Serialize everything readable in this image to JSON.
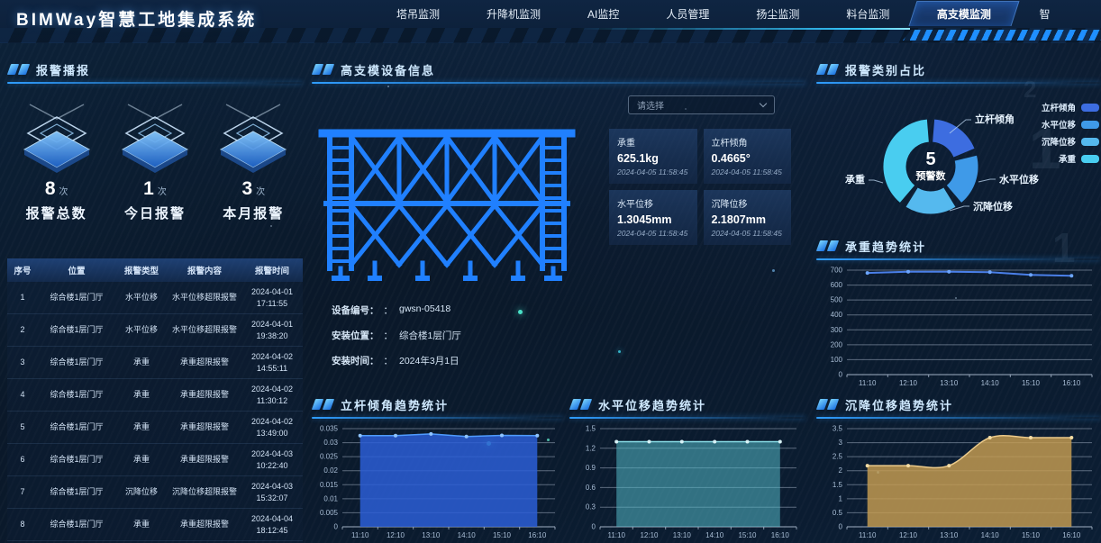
{
  "header": {
    "title": "BIMWay智慧工地集成系统",
    "tabs": [
      {
        "label": "塔吊监测",
        "active": false
      },
      {
        "label": "升降机监测",
        "active": false
      },
      {
        "label": "AI监控",
        "active": false
      },
      {
        "label": "人员管理",
        "active": false
      },
      {
        "label": "扬尘监测",
        "active": false
      },
      {
        "label": "料台监测",
        "active": false
      },
      {
        "label": "高支模监测",
        "active": true
      },
      {
        "label": "智",
        "active": false
      }
    ]
  },
  "alarm_panel": {
    "title": "报警播报",
    "stats": [
      {
        "value": "8",
        "unit": "次",
        "label": "报警总数"
      },
      {
        "value": "1",
        "unit": "次",
        "label": "今日报警"
      },
      {
        "value": "3",
        "unit": "次",
        "label": "本月报警"
      }
    ],
    "table": {
      "columns": [
        "序号",
        "位置",
        "报警类型",
        "报警内容",
        "报警时间"
      ],
      "rows": [
        [
          "1",
          "综合楼1层门厅",
          "水平位移",
          "水平位移超限报警",
          "2024-04-01 17:11:55"
        ],
        [
          "2",
          "综合楼1层门厅",
          "水平位移",
          "水平位移超限报警",
          "2024-04-01 19:38:20"
        ],
        [
          "3",
          "综合楼1层门厅",
          "承重",
          "承重超限报警",
          "2024-04-02 14:55:11"
        ],
        [
          "4",
          "综合楼1层门厅",
          "承重",
          "承重超限报警",
          "2024-04-02 11:30:12"
        ],
        [
          "5",
          "综合楼1层门厅",
          "承重",
          "承重超限报警",
          "2024-04-02 13:49:00"
        ],
        [
          "6",
          "综合楼1层门厅",
          "承重",
          "承重超限报警",
          "2024-04-03 10:22:40"
        ],
        [
          "7",
          "综合楼1层门厅",
          "沉降位移",
          "沉降位移超限报警",
          "2024-04-03 15:32:07"
        ],
        [
          "8",
          "综合楼1层门厅",
          "承重",
          "承重超限报警",
          "2024-04-04 18:12:45"
        ]
      ]
    }
  },
  "device_panel": {
    "title": "高支模设备信息",
    "select_placeholder": "请选择",
    "metric_cards": [
      {
        "label": "承重",
        "value": "625.1kg",
        "time": "2024-04-05 11:58:45"
      },
      {
        "label": "立杆倾角",
        "value": "0.4665°",
        "time": "2024-04-05 11:58:45"
      },
      {
        "label": "水平位移",
        "value": "1.3045mm",
        "time": "2024-04-05 11:58:45"
      },
      {
        "label": "沉降位移",
        "value": "2.1807mm",
        "time": "2024-04-05 11:58:45"
      }
    ],
    "info": [
      {
        "label": "设备编号：",
        "colon": "：",
        "value": "gwsn-05418"
      },
      {
        "label": "安装位置：",
        "colon": "：",
        "value": "综合楼1层门厅"
      },
      {
        "label": "安装时间：",
        "colon": "：",
        "value": "2024年3月1日"
      }
    ]
  },
  "chart_data": [
    {
      "id": "alarm-category-donut",
      "type": "pie",
      "title": "报警类别占比",
      "center": {
        "value": "5",
        "label": "预警数"
      },
      "segments": [
        {
          "name": "立杆倾角",
          "value": 1,
          "color": "#3d6de0"
        },
        {
          "name": "水平位移",
          "value": 1,
          "color": "#3f9ae8"
        },
        {
          "name": "沉降位移",
          "value": 1,
          "color": "#55b9ee"
        },
        {
          "name": "承重",
          "value": 2,
          "color": "#49cdf0"
        }
      ],
      "legend_position": "right"
    },
    {
      "id": "load-trend",
      "type": "line",
      "title": "承重趋势统计",
      "x": [
        "11:10",
        "12:10",
        "13:10",
        "14:10",
        "15:10",
        "16:10"
      ],
      "values": [
        681,
        689,
        689,
        687,
        668,
        662
      ],
      "ylim": [
        0,
        700
      ],
      "yticks": [
        "0",
        "100",
        "200",
        "300",
        "400",
        "500",
        "600",
        "700"
      ],
      "color": "#4a7fe8",
      "dot": "#6da6ff",
      "grid": true
    },
    {
      "id": "tilt-trend",
      "type": "area",
      "title": "立杆倾角趋势统计",
      "x": [
        "11:10",
        "12:10",
        "13:10",
        "14:10",
        "15:10",
        "16:10"
      ],
      "values": [
        0.0325,
        0.0325,
        0.0331,
        0.0322,
        0.0326,
        0.0325
      ],
      "ylim": [
        0,
        0.035
      ],
      "yticks": [
        "0",
        "0.005",
        "0.01",
        "0.015",
        "0.02",
        "0.025",
        "0.03",
        "0.035"
      ],
      "color": "#4f9bff",
      "fill": "#2b5ed6",
      "fillOpacity": 0.85,
      "dot": "#8fc4ff",
      "grid": true
    },
    {
      "id": "horizontal-displacement-trend",
      "type": "area",
      "title": "水平位移趋势统计",
      "x": [
        "11:10",
        "12:10",
        "13:10",
        "14:10",
        "15:10",
        "16:10"
      ],
      "values": [
        1.3,
        1.3,
        1.3,
        1.3,
        1.3,
        1.3
      ],
      "ylim": [
        0,
        1.5
      ],
      "yticks": [
        "0",
        "0.3",
        "0.6",
        "0.9",
        "1.2",
        "1.5"
      ],
      "color": "#8adfe8",
      "fill": "#53b8c6",
      "fillOpacity": 0.55,
      "dot": "#d8f2f6",
      "grid": true
    },
    {
      "id": "settlement-displacement-trend",
      "type": "area",
      "smooth": true,
      "title": "沉降位移趋势统计",
      "x": [
        "11:10",
        "12:10",
        "13:10",
        "14:10",
        "15:10",
        "16:10"
      ],
      "values": [
        2.18,
        2.18,
        2.18,
        3.18,
        3.18,
        3.18
      ],
      "ylim": [
        0,
        3.5
      ],
      "yticks": [
        "0",
        "0.5",
        "1",
        "1.5",
        "2",
        "2.5",
        "3",
        "3.5"
      ],
      "color": "#ecca8a",
      "fill": "#c79d52",
      "fillOpacity": 0.82,
      "dot": "#f4dca4",
      "grid": true
    }
  ]
}
